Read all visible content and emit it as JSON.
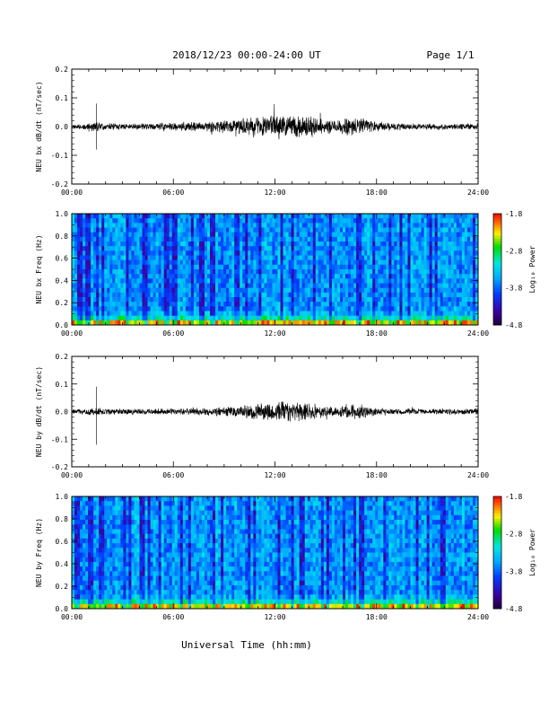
{
  "header": {
    "title": "2018/12/23  00:00-24:00 UT",
    "page": "Page 1/1"
  },
  "footer": {
    "xlabel": "Universal Time (hh:mm)"
  },
  "chart_data": [
    {
      "type": "line",
      "name": "bx-waveform",
      "ylabel": "NEU bx dB/dt (nT/sec)",
      "ylim": [
        -0.2,
        0.2
      ],
      "yticks": [
        "0.2",
        "0.1",
        "0.0",
        "-0.1",
        "-0.2"
      ],
      "xlim": [
        0,
        24
      ],
      "xticks": [
        "00:00",
        "06:00",
        "12:00",
        "18:00",
        "24:00"
      ],
      "envelope": {
        "hours": [
          0,
          1,
          1.5,
          2,
          3,
          4,
          5,
          6,
          7,
          8,
          9,
          10,
          11,
          12,
          13,
          14,
          15,
          16,
          16.5,
          17,
          18,
          19,
          20,
          21,
          22,
          23,
          24
        ],
        "amplitude": [
          0.01,
          0.012,
          0.02,
          0.012,
          0.012,
          0.012,
          0.012,
          0.015,
          0.018,
          0.02,
          0.025,
          0.03,
          0.04,
          0.045,
          0.04,
          0.04,
          0.025,
          0.03,
          0.04,
          0.035,
          0.02,
          0.015,
          0.012,
          0.012,
          0.012,
          0.012,
          0.012
        ]
      },
      "spike": {
        "hour": 1.45,
        "max": 0.08,
        "min": -0.08
      }
    },
    {
      "type": "heatmap",
      "name": "bx-spectrogram",
      "ylabel": "NEU bx Freq (Hz)",
      "ylim": [
        0,
        1.0
      ],
      "yticks": [
        "1.0",
        "0.8",
        "0.6",
        "0.4",
        "0.2",
        "0.0"
      ],
      "xlim": [
        0,
        24
      ],
      "xticks": [
        "00:00",
        "06:00",
        "12:00",
        "18:00",
        "24:00"
      ],
      "colorbar": {
        "label": "Log₁₀ Power",
        "min": -4.8,
        "max": -1.8,
        "ticks": [
          "-1.8",
          "-2.8",
          "-3.8",
          "-4.8"
        ]
      }
    },
    {
      "type": "line",
      "name": "by-waveform",
      "ylabel": "NEU by dB/dt (nT/sec)",
      "ylim": [
        -0.2,
        0.2
      ],
      "yticks": [
        "0.2",
        "0.1",
        "0.0",
        "-0.1",
        "-0.2"
      ],
      "xlim": [
        0,
        24
      ],
      "xticks": [
        "00:00",
        "06:00",
        "12:00",
        "18:00",
        "24:00"
      ],
      "envelope": {
        "hours": [
          0,
          1,
          1.5,
          2,
          3,
          4,
          5,
          6,
          7,
          8,
          9,
          10,
          11,
          12,
          13,
          14,
          15,
          16,
          16.5,
          17,
          18,
          19,
          20,
          21,
          22,
          23,
          24
        ],
        "amplitude": [
          0.01,
          0.012,
          0.02,
          0.012,
          0.012,
          0.012,
          0.012,
          0.012,
          0.015,
          0.015,
          0.02,
          0.025,
          0.035,
          0.04,
          0.04,
          0.04,
          0.02,
          0.025,
          0.03,
          0.03,
          0.015,
          0.012,
          0.012,
          0.012,
          0.012,
          0.012,
          0.012
        ]
      },
      "spike": {
        "hour": 1.45,
        "max": 0.09,
        "min": -0.12
      }
    },
    {
      "type": "heatmap",
      "name": "by-spectrogram",
      "ylabel": "NEU by Freq (Hz)",
      "ylim": [
        0,
        1.0
      ],
      "yticks": [
        "1.0",
        "0.8",
        "0.6",
        "0.4",
        "0.2",
        "0.0"
      ],
      "xlim": [
        0,
        24
      ],
      "xticks": [
        "00:00",
        "06:00",
        "12:00",
        "18:00",
        "24:00"
      ],
      "colorbar": {
        "label": "Log₁₀ Power",
        "min": -4.8,
        "max": -1.8,
        "ticks": [
          "-1.8",
          "-2.8",
          "-3.8",
          "-4.8"
        ]
      }
    }
  ]
}
